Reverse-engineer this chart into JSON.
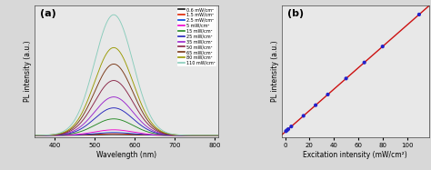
{
  "panel_a": {
    "label": "(a)",
    "xlabel": "Wavelength (nm)",
    "ylabel": "PL intensity (a.u.)",
    "xlim": [
      350,
      810
    ],
    "ylim": [
      -0.02,
      1.08
    ],
    "xticks": [
      400,
      500,
      600,
      700,
      800
    ],
    "peak_wl": 548,
    "sigma": 48,
    "powers": [
      0.6,
      1.5,
      2.5,
      5,
      15,
      25,
      35,
      50,
      65,
      80,
      110
    ],
    "colors": [
      "#111111",
      "#dd2200",
      "#0044dd",
      "#ee00cc",
      "#228822",
      "#2222bb",
      "#9922cc",
      "#882244",
      "#773311",
      "#999900",
      "#88ccbb"
    ],
    "legend_labels": [
      "0.6 mW/cm²",
      "1.5 mW/cm²",
      "2.5 mW/cm²",
      "5 mW/cm²",
      "15 mW/cm²",
      "25 mW/cm²",
      "35 mW/cm²",
      "50 mW/cm²",
      "65 mW/cm²",
      "80 mW/cm²",
      "110 mW/cm²"
    ]
  },
  "panel_b": {
    "label": "(b)",
    "xlabel": "Excitation intensity (mW/cm²)",
    "ylabel": "PL intensity (a.u.)",
    "xlim": [
      -3,
      118
    ],
    "ylim": [
      -0.05,
      1.08
    ],
    "xticks": [
      0,
      20,
      40,
      60,
      80,
      100
    ],
    "powers": [
      0.6,
      1.5,
      2.5,
      5,
      15,
      25,
      35,
      50,
      65,
      80,
      110
    ],
    "dot_color": "#2222cc",
    "line_color": "#cc1111"
  },
  "bg_color": "#d8d8d8",
  "plot_bg": "#e8e8e8"
}
